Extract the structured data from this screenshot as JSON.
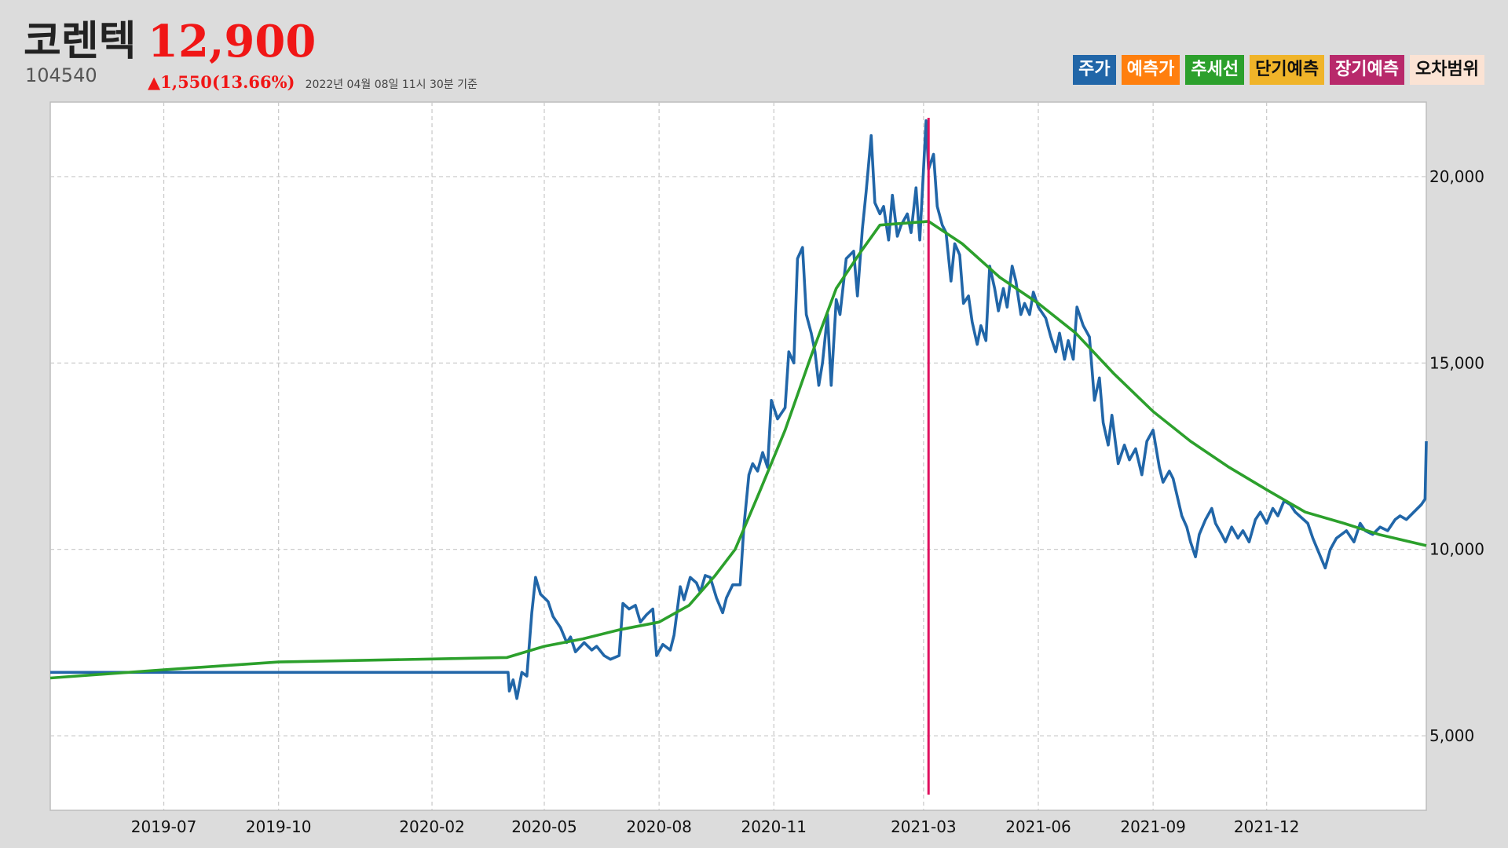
{
  "stock": {
    "name": "코렌텍",
    "price": "12,900",
    "code": "104540",
    "change": "▲1,550(13.66%)",
    "timestamp": "2022년 04월 08일 11시 30분 기준"
  },
  "legend": [
    {
      "label": "주가",
      "bg": "#2166a8",
      "color": "#ffffff"
    },
    {
      "label": "예측가",
      "bg": "#ff7f0e",
      "color": "#ffffff"
    },
    {
      "label": "추세선",
      "bg": "#2ca02c",
      "color": "#ffffff"
    },
    {
      "label": "단기예측",
      "bg": "#f0b429",
      "color": "#111111"
    },
    {
      "label": "장기예측",
      "bg": "#b8296b",
      "color": "#ffffff"
    },
    {
      "label": "오차범위",
      "bg": "#fbe3d4",
      "color": "#111111"
    }
  ],
  "chart_data": {
    "type": "line",
    "x_axis": {
      "type": "date",
      "range": [
        "2019-04-01",
        "2022-04-08"
      ],
      "ticks": [
        "2019-07",
        "2019-10",
        "2020-02",
        "2020-05",
        "2020-08",
        "2020-11",
        "2021-03",
        "2021-06",
        "2021-09",
        "2021-12"
      ]
    },
    "y_axis": {
      "range": [
        3000,
        22000
      ],
      "position": "right",
      "ticks": [
        {
          "value": 5000,
          "label": "5,000"
        },
        {
          "value": 10000,
          "label": "10,000"
        },
        {
          "value": 15000,
          "label": "15,000"
        },
        {
          "value": 20000,
          "label": "20,000"
        }
      ]
    },
    "grid": true,
    "colors": {
      "price": "#2166a8",
      "trend": "#2ca02c",
      "marker": "#e0105e"
    },
    "series": [
      {
        "name": "주가",
        "color": "#2166a8",
        "points": [
          [
            "2019-04-01",
            6700
          ],
          [
            "2020-04-02",
            6700
          ],
          [
            "2020-04-03",
            6200
          ],
          [
            "2020-04-06",
            6500
          ],
          [
            "2020-04-09",
            6000
          ],
          [
            "2020-04-13",
            6700
          ],
          [
            "2020-04-17",
            6600
          ],
          [
            "2020-04-21",
            8300
          ],
          [
            "2020-04-24",
            9250
          ],
          [
            "2020-04-28",
            8800
          ],
          [
            "2020-05-04",
            8600
          ],
          [
            "2020-05-08",
            8200
          ],
          [
            "2020-05-14",
            7900
          ],
          [
            "2020-05-19",
            7500
          ],
          [
            "2020-05-22",
            7650
          ],
          [
            "2020-05-26",
            7250
          ],
          [
            "2020-06-02",
            7500
          ],
          [
            "2020-06-08",
            7300
          ],
          [
            "2020-06-12",
            7400
          ],
          [
            "2020-06-18",
            7150
          ],
          [
            "2020-06-23",
            7050
          ],
          [
            "2020-06-30",
            7150
          ],
          [
            "2020-07-03",
            8550
          ],
          [
            "2020-07-08",
            8400
          ],
          [
            "2020-07-13",
            8500
          ],
          [
            "2020-07-17",
            8050
          ],
          [
            "2020-07-22",
            8250
          ],
          [
            "2020-07-27",
            8400
          ],
          [
            "2020-07-30",
            7150
          ],
          [
            "2020-08-04",
            7450
          ],
          [
            "2020-08-10",
            7300
          ],
          [
            "2020-08-13",
            7700
          ],
          [
            "2020-08-18",
            9000
          ],
          [
            "2020-08-21",
            8650
          ],
          [
            "2020-08-26",
            9250
          ],
          [
            "2020-08-31",
            9100
          ],
          [
            "2020-09-03",
            8850
          ],
          [
            "2020-09-07",
            9300
          ],
          [
            "2020-09-11",
            9250
          ],
          [
            "2020-09-16",
            8700
          ],
          [
            "2020-09-21",
            8300
          ],
          [
            "2020-09-24",
            8700
          ],
          [
            "2020-09-29",
            9050
          ],
          [
            "2020-10-05",
            9050
          ],
          [
            "2020-10-08",
            10600
          ],
          [
            "2020-10-12",
            12000
          ],
          [
            "2020-10-15",
            12300
          ],
          [
            "2020-10-19",
            12100
          ],
          [
            "2020-10-23",
            12600
          ],
          [
            "2020-10-27",
            12200
          ],
          [
            "2020-10-30",
            14000
          ],
          [
            "2020-11-04",
            13500
          ],
          [
            "2020-11-10",
            13800
          ],
          [
            "2020-11-13",
            15300
          ],
          [
            "2020-11-17",
            15000
          ],
          [
            "2020-11-20",
            17800
          ],
          [
            "2020-11-24",
            18100
          ],
          [
            "2020-11-27",
            16300
          ],
          [
            "2020-12-01",
            15800
          ],
          [
            "2020-12-04",
            15300
          ],
          [
            "2020-12-07",
            14400
          ],
          [
            "2020-12-10",
            15000
          ],
          [
            "2020-12-14",
            16300
          ],
          [
            "2020-12-17",
            14400
          ],
          [
            "2020-12-21",
            16700
          ],
          [
            "2020-12-24",
            16300
          ],
          [
            "2020-12-29",
            17800
          ],
          [
            "2021-01-04",
            18000
          ],
          [
            "2021-01-07",
            16800
          ],
          [
            "2021-01-11",
            18600
          ],
          [
            "2021-01-14",
            19600
          ],
          [
            "2021-01-18",
            21100
          ],
          [
            "2021-01-21",
            19300
          ],
          [
            "2021-01-25",
            19000
          ],
          [
            "2021-01-28",
            19200
          ],
          [
            "2021-02-01",
            18300
          ],
          [
            "2021-02-04",
            19500
          ],
          [
            "2021-02-08",
            18400
          ],
          [
            "2021-02-11",
            18700
          ],
          [
            "2021-02-16",
            19000
          ],
          [
            "2021-02-19",
            18500
          ],
          [
            "2021-02-23",
            19700
          ],
          [
            "2021-02-26",
            18300
          ],
          [
            "2021-03-03",
            21500
          ],
          [
            "2021-03-05",
            20200
          ],
          [
            "2021-03-09",
            20600
          ],
          [
            "2021-03-12",
            19200
          ],
          [
            "2021-03-16",
            18700
          ],
          [
            "2021-03-19",
            18500
          ],
          [
            "2021-03-23",
            17200
          ],
          [
            "2021-03-26",
            18200
          ],
          [
            "2021-03-30",
            17900
          ],
          [
            "2021-04-02",
            16600
          ],
          [
            "2021-04-06",
            16800
          ],
          [
            "2021-04-09",
            16100
          ],
          [
            "2021-04-13",
            15500
          ],
          [
            "2021-04-16",
            16000
          ],
          [
            "2021-04-20",
            15600
          ],
          [
            "2021-04-23",
            17600
          ],
          [
            "2021-04-27",
            17000
          ],
          [
            "2021-04-30",
            16400
          ],
          [
            "2021-05-04",
            17000
          ],
          [
            "2021-05-07",
            16500
          ],
          [
            "2021-05-11",
            17600
          ],
          [
            "2021-05-14",
            17200
          ],
          [
            "2021-05-18",
            16300
          ],
          [
            "2021-05-21",
            16600
          ],
          [
            "2021-05-25",
            16300
          ],
          [
            "2021-05-28",
            16900
          ],
          [
            "2021-06-01",
            16500
          ],
          [
            "2021-06-07",
            16200
          ],
          [
            "2021-06-11",
            15700
          ],
          [
            "2021-06-15",
            15300
          ],
          [
            "2021-06-18",
            15800
          ],
          [
            "2021-06-22",
            15100
          ],
          [
            "2021-06-25",
            15600
          ],
          [
            "2021-06-29",
            15100
          ],
          [
            "2021-07-02",
            16500
          ],
          [
            "2021-07-07",
            16000
          ],
          [
            "2021-07-12",
            15700
          ],
          [
            "2021-07-16",
            14000
          ],
          [
            "2021-07-20",
            14600
          ],
          [
            "2021-07-23",
            13400
          ],
          [
            "2021-07-27",
            12800
          ],
          [
            "2021-07-30",
            13600
          ],
          [
            "2021-08-04",
            12300
          ],
          [
            "2021-08-09",
            12800
          ],
          [
            "2021-08-13",
            12400
          ],
          [
            "2021-08-18",
            12700
          ],
          [
            "2021-08-23",
            12000
          ],
          [
            "2021-08-27",
            12900
          ],
          [
            "2021-09-01",
            13200
          ],
          [
            "2021-09-06",
            12200
          ],
          [
            "2021-09-09",
            11800
          ],
          [
            "2021-09-14",
            12100
          ],
          [
            "2021-09-17",
            11900
          ],
          [
            "2021-09-24",
            10900
          ],
          [
            "2021-09-28",
            10600
          ],
          [
            "2021-10-01",
            10200
          ],
          [
            "2021-10-05",
            9800
          ],
          [
            "2021-10-08",
            10400
          ],
          [
            "2021-10-13",
            10800
          ],
          [
            "2021-10-18",
            11100
          ],
          [
            "2021-10-21",
            10700
          ],
          [
            "2021-10-26",
            10400
          ],
          [
            "2021-10-29",
            10200
          ],
          [
            "2021-11-03",
            10600
          ],
          [
            "2021-11-08",
            10300
          ],
          [
            "2021-11-12",
            10500
          ],
          [
            "2021-11-17",
            10200
          ],
          [
            "2021-11-22",
            10800
          ],
          [
            "2021-11-26",
            11000
          ],
          [
            "2021-12-01",
            10700
          ],
          [
            "2021-12-06",
            11100
          ],
          [
            "2021-12-10",
            10900
          ],
          [
            "2021-12-15",
            11300
          ],
          [
            "2021-12-20",
            11200
          ],
          [
            "2021-12-24",
            11000
          ],
          [
            "2022-01-03",
            10700
          ],
          [
            "2022-01-07",
            10300
          ],
          [
            "2022-01-12",
            9900
          ],
          [
            "2022-01-17",
            9500
          ],
          [
            "2022-01-21",
            10000
          ],
          [
            "2022-01-26",
            10300
          ],
          [
            "2022-02-03",
            10500
          ],
          [
            "2022-02-09",
            10200
          ],
          [
            "2022-02-14",
            10700
          ],
          [
            "2022-02-18",
            10500
          ],
          [
            "2022-02-24",
            10400
          ],
          [
            "2022-03-02",
            10600
          ],
          [
            "2022-03-08",
            10500
          ],
          [
            "2022-03-14",
            10800
          ],
          [
            "2022-03-18",
            10900
          ],
          [
            "2022-03-23",
            10800
          ],
          [
            "2022-03-29",
            11000
          ],
          [
            "2022-04-04",
            11200
          ],
          [
            "2022-04-07",
            11350
          ],
          [
            "2022-04-08",
            12900
          ]
        ]
      },
      {
        "name": "추세선",
        "color": "#2ca02c",
        "points": [
          [
            "2019-04-01",
            6550
          ],
          [
            "2019-07-01",
            6770
          ],
          [
            "2019-10-01",
            6980
          ],
          [
            "2020-02-01",
            7060
          ],
          [
            "2020-04-01",
            7100
          ],
          [
            "2020-05-01",
            7400
          ],
          [
            "2020-06-01",
            7600
          ],
          [
            "2020-07-01",
            7850
          ],
          [
            "2020-08-01",
            8050
          ],
          [
            "2020-08-25",
            8500
          ],
          [
            "2020-09-15",
            9300
          ],
          [
            "2020-10-01",
            10000
          ],
          [
            "2020-10-20",
            11500
          ],
          [
            "2020-11-10",
            13200
          ],
          [
            "2020-12-01",
            15200
          ],
          [
            "2020-12-21",
            17000
          ],
          [
            "2021-01-10",
            18000
          ],
          [
            "2021-01-25",
            18700
          ],
          [
            "2021-03-05",
            18800
          ],
          [
            "2021-04-01",
            18200
          ],
          [
            "2021-05-01",
            17300
          ],
          [
            "2021-06-01",
            16600
          ],
          [
            "2021-07-01",
            15800
          ],
          [
            "2021-08-01",
            14700
          ],
          [
            "2021-09-01",
            13700
          ],
          [
            "2021-10-01",
            12900
          ],
          [
            "2021-11-01",
            12200
          ],
          [
            "2021-12-01",
            11600
          ],
          [
            "2022-01-01",
            11000
          ],
          [
            "2022-02-01",
            10700
          ],
          [
            "2022-03-01",
            10400
          ],
          [
            "2022-04-08",
            10100
          ]
        ]
      }
    ],
    "marker_date": "2021-03-05"
  }
}
